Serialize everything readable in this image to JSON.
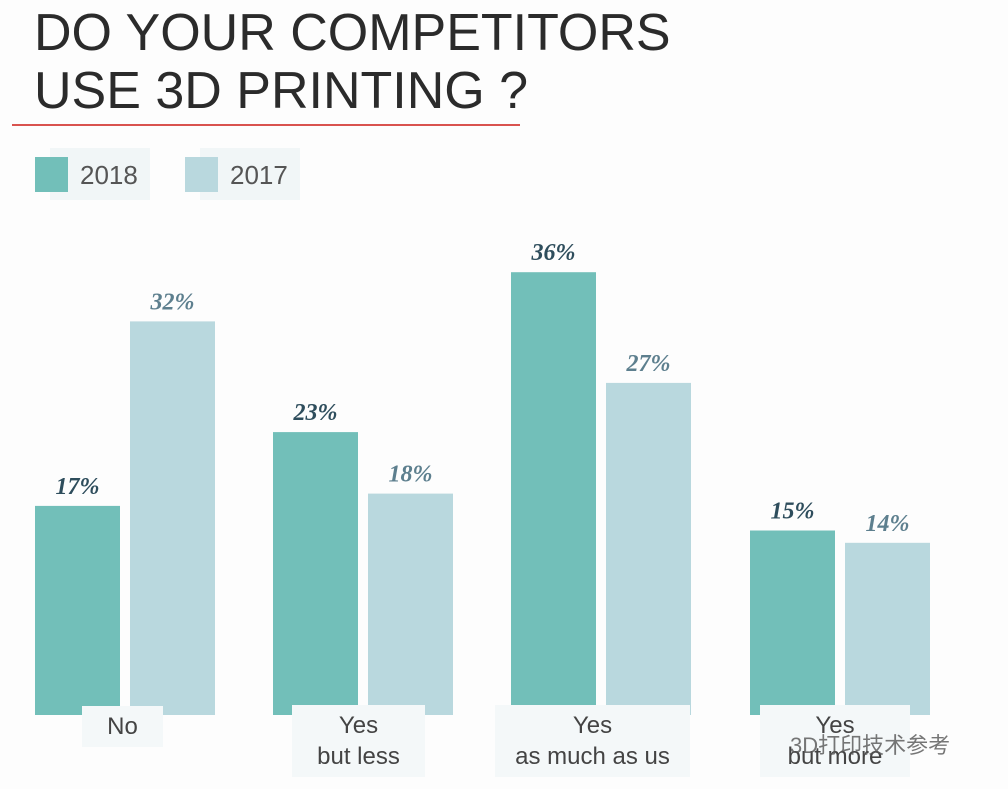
{
  "chart_data": {
    "type": "bar",
    "title": "DO YOUR COMPETITORS\nUSE 3D PRINTING ?",
    "categories": [
      "No",
      "Yes\nbut less",
      "Yes\nas much as us",
      "Yes\nbut more"
    ],
    "series": [
      {
        "name": "2018",
        "color": "#72bfb9",
        "values": [
          17,
          23,
          36,
          15
        ],
        "value_labels": [
          "17%",
          "23%",
          "36%",
          "15%"
        ]
      },
      {
        "name": "2017",
        "color": "#b9d8de",
        "values": [
          32,
          18,
          27,
          14
        ],
        "value_labels": [
          "32%",
          "18%",
          "27%",
          "14%"
        ]
      }
    ],
    "watermark": "3D打印技术参考"
  }
}
